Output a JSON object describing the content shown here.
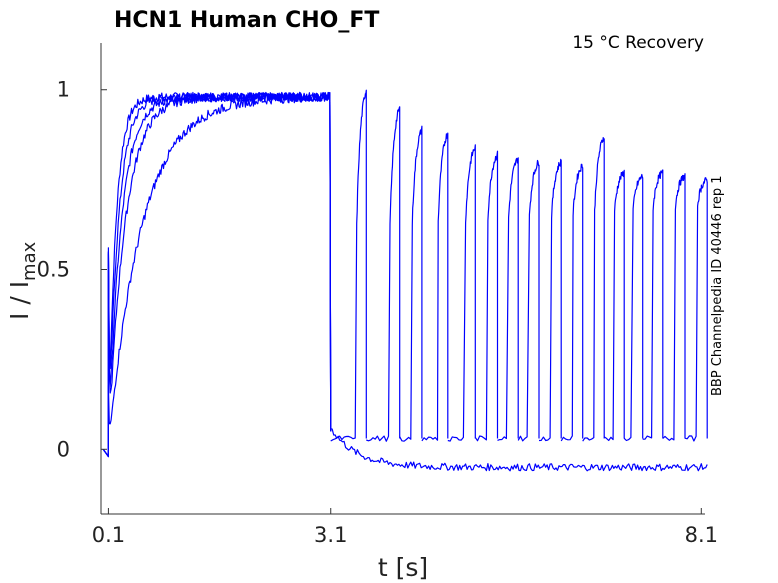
{
  "chart_data": {
    "type": "line",
    "title": "HCN1  Human  CHO_FT",
    "annotation": "15 °C  Recovery",
    "side_label": "BBP Channelpedia ID 40446 rep 1",
    "xlabel": "t [s]",
    "ylabel": "I / I",
    "ylabel_sub": "max",
    "x_ticks": [
      0.1,
      3.1,
      8.1
    ],
    "x_tick_labels": [
      "0.1",
      "3.1",
      "8.1"
    ],
    "y_ticks": [
      0,
      0.5,
      1
    ],
    "y_tick_labels": [
      "0",
      "0.5",
      "1"
    ],
    "xlim": [
      0.0,
      8.15
    ],
    "ylim": [
      -0.18,
      1.13
    ],
    "grid": false,
    "legend": "none",
    "color": "#0000ff",
    "prepulse": {
      "start": 0.1,
      "end": 3.1,
      "peak": 0.98
    },
    "recovery": {
      "deactivated_level": -0.05,
      "floor_level": 0.03,
      "test_pulse_duration": 0.13,
      "test_pulses": [
        {
          "t": 3.45,
          "peak": 1.0
        },
        {
          "t": 3.9,
          "peak": 0.95
        },
        {
          "t": 4.2,
          "peak": 0.89
        },
        {
          "t": 4.55,
          "peak": 0.88
        },
        {
          "t": 4.92,
          "peak": 0.84
        },
        {
          "t": 5.22,
          "peak": 0.82
        },
        {
          "t": 5.5,
          "peak": 0.81
        },
        {
          "t": 5.78,
          "peak": 0.8
        },
        {
          "t": 6.08,
          "peak": 0.8
        },
        {
          "t": 6.37,
          "peak": 0.79
        },
        {
          "t": 6.66,
          "peak": 0.87
        },
        {
          "t": 6.93,
          "peak": 0.77
        },
        {
          "t": 7.18,
          "peak": 0.76
        },
        {
          "t": 7.45,
          "peak": 0.77
        },
        {
          "t": 7.75,
          "peak": 0.76
        },
        {
          "t": 8.05,
          "peak": 0.75
        }
      ]
    }
  }
}
